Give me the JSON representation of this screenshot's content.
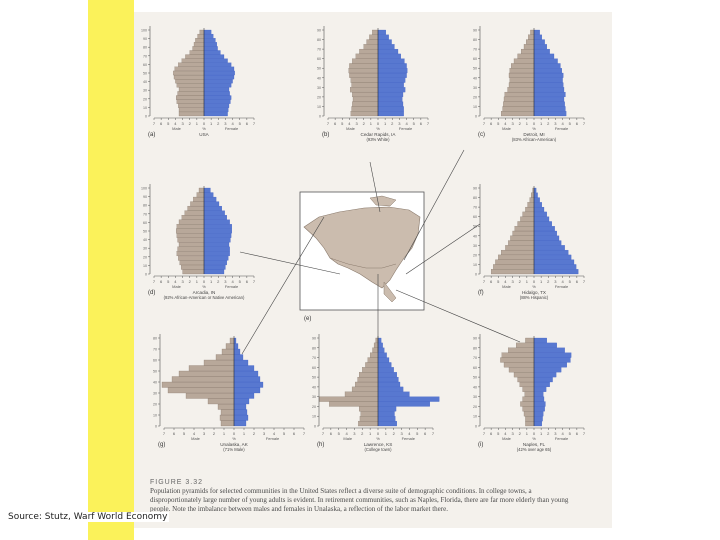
{
  "colors": {
    "male": "#b8a89a",
    "female": "#5878d0",
    "female_dark": "#3e5fc4",
    "strip": "#fbf25a",
    "scan": "#f4f1ec"
  },
  "source": "Source: Stutz, Warf World Economy",
  "caption": {
    "figure_label": "FIGURE 3.32",
    "text": "Population pyramids for selected communities in the United States reflect a diverse suite of demographic conditions. In college towns, a disproportionately large number of young adults is evident. In retirement communities, such as Naples, Florida, there are far more elderly than young people. Note the imbalance between males and females in Unalaska, a reflection of the labor market there."
  },
  "map": {
    "letter": "(e)"
  },
  "chart_data": [
    {
      "type": "bar",
      "letter": "(a)",
      "title": "USA",
      "x_ticks": [
        "7",
        "6",
        "5",
        "4",
        "3",
        "2",
        "1",
        "0",
        "1",
        "2",
        "3",
        "4",
        "5",
        "6",
        "7"
      ],
      "xlabel_male": "Male",
      "xlabel_pct": "%",
      "xlabel_female": "Female",
      "age_ticks": [
        "0",
        "10",
        "20",
        "30",
        "40",
        "50",
        "60",
        "70",
        "80",
        "90",
        "100"
      ],
      "male": [
        3.5,
        3.5,
        3.6,
        3.8,
        3.9,
        3.7,
        3.5,
        3.8,
        4.0,
        4.2,
        4.3,
        4.1,
        3.6,
        3.1,
        2.6,
        2.0,
        1.6,
        1.4,
        1.2,
        0.9,
        0.6
      ],
      "female": [
        3.3,
        3.4,
        3.5,
        3.7,
        3.8,
        3.6,
        3.5,
        3.8,
        4.0,
        4.2,
        4.3,
        4.2,
        3.8,
        3.3,
        2.8,
        2.3,
        1.9,
        1.8,
        1.6,
        1.3,
        1.0
      ]
    },
    {
      "type": "bar",
      "letter": "(b)",
      "title": "Cedar Rapids, IA",
      "subtitle": "(93% White)",
      "x_ticks": [
        "7",
        "6",
        "5",
        "4",
        "3",
        "2",
        "1",
        "0",
        "1",
        "2",
        "3",
        "4",
        "5",
        "6",
        "7"
      ],
      "xlabel_male": "Male",
      "xlabel_pct": "%",
      "xlabel_female": "Female",
      "age_ticks": [
        "0",
        "10",
        "20",
        "30",
        "40",
        "50",
        "60",
        "70",
        "80",
        "90"
      ],
      "male": [
        3.8,
        3.7,
        3.6,
        3.5,
        3.6,
        3.9,
        3.7,
        3.8,
        4.0,
        4.1,
        4.0,
        3.6,
        3.1,
        2.6,
        2.0,
        1.6,
        1.2,
        0.8
      ],
      "female": [
        3.6,
        3.6,
        3.5,
        3.4,
        3.5,
        3.8,
        3.6,
        3.8,
        4.0,
        4.1,
        4.0,
        3.7,
        3.2,
        2.8,
        2.3,
        1.9,
        1.5,
        1.1
      ]
    },
    {
      "type": "bar",
      "letter": "(c)",
      "title": "Detroit, MI",
      "subtitle": "(83% African-American)",
      "x_ticks": [
        "7",
        "6",
        "5",
        "4",
        "3",
        "2",
        "1",
        "0",
        "1",
        "2",
        "3",
        "4",
        "5",
        "6",
        "7"
      ],
      "xlabel_male": "Male",
      "xlabel_pct": "%",
      "xlabel_female": "Female",
      "age_ticks": [
        "0",
        "10",
        "20",
        "30",
        "40",
        "50",
        "60",
        "70",
        "80",
        "90"
      ],
      "male": [
        4.6,
        4.4,
        4.3,
        4.2,
        4.1,
        3.7,
        3.5,
        3.4,
        3.5,
        3.4,
        3.2,
        2.8,
        2.3,
        1.8,
        1.4,
        1.1,
        0.8,
        0.5
      ],
      "female": [
        4.5,
        4.4,
        4.3,
        4.2,
        4.4,
        4.2,
        4.1,
        4.0,
        4.1,
        3.9,
        3.7,
        3.3,
        2.8,
        2.2,
        1.8,
        1.5,
        1.1,
        0.8
      ]
    },
    {
      "type": "bar",
      "letter": "(d)",
      "title": "Arcadia, IN",
      "subtitle": "(92% African-American or Native American)",
      "x_ticks": [
        "7",
        "6",
        "5",
        "4",
        "3",
        "2",
        "1",
        "0",
        "1",
        "2",
        "3",
        "4",
        "5",
        "6",
        "7"
      ],
      "xlabel_male": "Male",
      "xlabel_pct": "%",
      "xlabel_female": "Female",
      "age_ticks": [
        "0",
        "10",
        "20",
        "30",
        "40",
        "50",
        "60",
        "70",
        "80",
        "90",
        "100"
      ],
      "male": [
        3.0,
        3.2,
        3.4,
        3.6,
        3.8,
        3.7,
        3.5,
        3.7,
        3.8,
        3.9,
        3.8,
        3.5,
        3.1,
        2.7,
        2.3,
        1.9,
        1.5,
        1.0,
        0.7
      ],
      "female": [
        2.8,
        3.0,
        3.2,
        3.4,
        3.6,
        3.6,
        3.5,
        3.7,
        3.8,
        3.9,
        3.9,
        3.6,
        3.2,
        2.9,
        2.5,
        2.1,
        1.7,
        1.3,
        0.9
      ]
    },
    {
      "type": "bar",
      "letter": "(f)",
      "title": "Hidalgo, TX",
      "subtitle": "(88% Hispanic)",
      "x_ticks": [
        "7",
        "6",
        "5",
        "4",
        "3",
        "2",
        "1",
        "0",
        "1",
        "2",
        "3",
        "4",
        "5",
        "6",
        "7"
      ],
      "xlabel_male": "Male",
      "xlabel_pct": "%",
      "xlabel_female": "Female",
      "age_ticks": [
        "0",
        "10",
        "20",
        "30",
        "40",
        "50",
        "60",
        "70",
        "80",
        "90"
      ],
      "male": [
        6.0,
        5.7,
        5.4,
        5.0,
        4.6,
        4.0,
        3.6,
        3.3,
        3.0,
        2.7,
        2.3,
        1.9,
        1.6,
        1.2,
        0.9,
        0.6,
        0.4,
        0.2
      ],
      "female": [
        6.2,
        5.9,
        5.6,
        5.2,
        4.8,
        4.3,
        3.8,
        3.5,
        3.2,
        2.9,
        2.5,
        2.1,
        1.8,
        1.4,
        1.1,
        0.8,
        0.5,
        0.3
      ]
    },
    {
      "type": "bar",
      "letter": "(g)",
      "title": "Unalaska, AK",
      "subtitle": "(71% Male)",
      "x_ticks": [
        "7",
        "6",
        "5",
        "4",
        "3",
        "2",
        "1",
        "0",
        "1",
        "2",
        "3",
        "4",
        "5",
        "6",
        "7"
      ],
      "xlabel_male": "Male",
      "xlabel_pct": "%",
      "xlabel_female": "Female",
      "age_ticks": [
        "0",
        "10",
        "20",
        "30",
        "40",
        "50",
        "60",
        "70",
        "80"
      ],
      "male": [
        1.3,
        1.4,
        1.3,
        1.6,
        2.6,
        4.8,
        6.6,
        7.2,
        6.2,
        5.5,
        4.5,
        3.0,
        1.8,
        1.2,
        0.8,
        0.4
      ],
      "female": [
        1.2,
        1.4,
        1.3,
        1.2,
        1.5,
        2.0,
        2.6,
        2.9,
        2.6,
        2.4,
        2.0,
        1.4,
        0.9,
        0.6,
        0.4,
        0.2
      ]
    },
    {
      "type": "bar",
      "letter": "(h)",
      "title": "Lawrence, KS",
      "subtitle": "(College town)",
      "x_ticks": [
        "7",
        "6",
        "5",
        "4",
        "3",
        "2",
        "1",
        "0",
        "1",
        "2",
        "3",
        "4",
        "5",
        "6",
        "7"
      ],
      "xlabel_male": "Male",
      "xlabel_pct": "%",
      "xlabel_female": "Female",
      "age_ticks": [
        "0",
        "10",
        "20",
        "30",
        "40",
        "50",
        "60",
        "70",
        "80",
        "90"
      ],
      "male": [
        2.5,
        2.3,
        2.2,
        2.4,
        6.2,
        7.5,
        4.2,
        3.3,
        2.9,
        2.6,
        2.4,
        2.0,
        1.6,
        1.3,
        1.0,
        0.7,
        0.5,
        0.3
      ],
      "female": [
        2.4,
        2.2,
        2.1,
        2.3,
        6.6,
        7.8,
        4.0,
        3.2,
        2.8,
        2.6,
        2.4,
        2.0,
        1.7,
        1.4,
        1.1,
        0.8,
        0.6,
        0.4
      ]
    },
    {
      "type": "bar",
      "letter": "(i)",
      "title": "Naples, FL",
      "subtitle": "(42% over age 65)",
      "x_ticks": [
        "7",
        "6",
        "5",
        "4",
        "3",
        "2",
        "1",
        "0",
        "1",
        "2",
        "3",
        "4",
        "5",
        "6",
        "7"
      ],
      "xlabel_male": "Male",
      "xlabel_pct": "%",
      "xlabel_female": "Female",
      "age_ticks": [
        "0",
        "10",
        "20",
        "30",
        "40",
        "50",
        "60",
        "70",
        "80",
        "90"
      ],
      "male": [
        1.2,
        1.2,
        1.4,
        1.6,
        1.9,
        1.6,
        1.3,
        1.6,
        2.0,
        2.3,
        2.8,
        3.5,
        4.2,
        4.7,
        4.5,
        3.6,
        2.5,
        1.2
      ],
      "female": [
        1.1,
        1.2,
        1.3,
        1.5,
        1.6,
        1.4,
        1.3,
        1.7,
        2.2,
        2.6,
        3.1,
        3.8,
        4.6,
        5.1,
        5.2,
        4.3,
        3.2,
        1.8
      ]
    }
  ]
}
